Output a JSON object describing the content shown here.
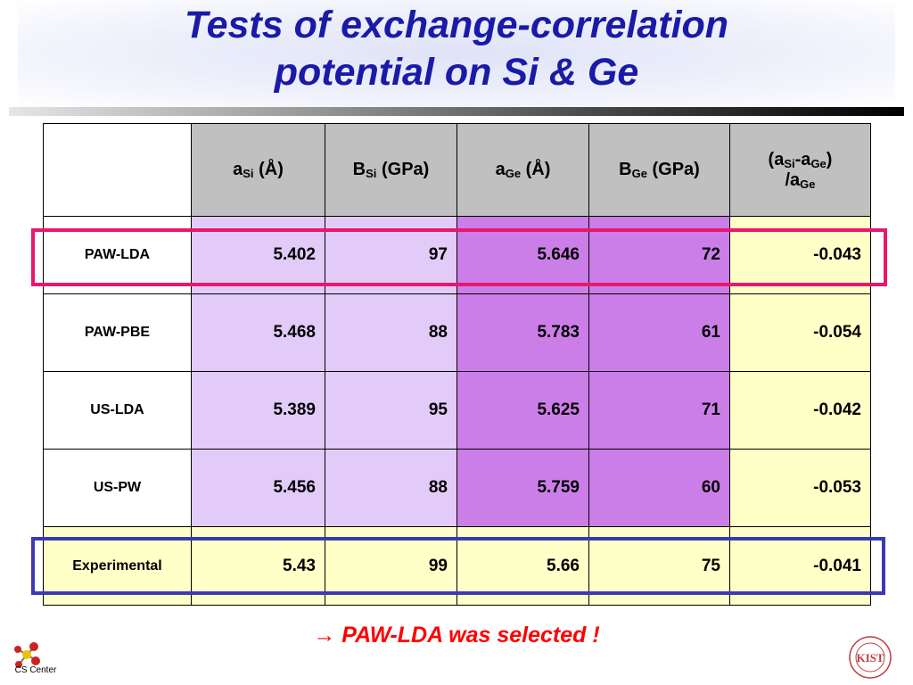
{
  "title": {
    "line1": "Tests of exchange-correlation",
    "line2": "potential on Si & Ge"
  },
  "table": {
    "headers": [
      {
        "main": "a",
        "sub": "Si",
        "rest": " (Å)"
      },
      {
        "main": "B",
        "sub": "Si",
        "rest": " (GPa)"
      },
      {
        "main": "a",
        "sub": "Ge",
        "rest": " (Å)"
      },
      {
        "main": "B",
        "sub": "Ge",
        "rest": " (GPa)"
      }
    ],
    "last_header": {
      "p1": "(a",
      "s1": "Si",
      "p2": "-a",
      "s2": "Ge",
      "p3": ")",
      "p4": "/a",
      "s3": "Ge"
    },
    "rows": [
      {
        "label": "PAW-LDA",
        "values": [
          "5.402",
          "97",
          "5.646",
          "72",
          "-0.043"
        ]
      },
      {
        "label": "PAW-PBE",
        "values": [
          "5.468",
          "88",
          "5.783",
          "61",
          "-0.054"
        ]
      },
      {
        "label": "US-LDA",
        "values": [
          "5.389",
          "95",
          "5.625",
          "71",
          "-0.042"
        ]
      },
      {
        "label": "US-PW",
        "values": [
          "5.456",
          "88",
          "5.759",
          "60",
          "-0.053"
        ]
      },
      {
        "label": "Experimental",
        "values": [
          "5.43",
          "99",
          "5.66",
          "75",
          "-0.041"
        ]
      }
    ]
  },
  "conclusion": "PAW-LDA was selected !",
  "conclusion_arrow": "→",
  "logos": {
    "left_caption": "CS Center",
    "right_mark": "KIST"
  },
  "colors": {
    "title": "#1a1aa8",
    "header_bg": "#c0c0c0",
    "si_col_bg": "#e2cbf8",
    "ge_col_bg": "#cc7ee8",
    "ratio_col_bg": "#ffffc8",
    "highlight_paw_lda": "#e8186e",
    "highlight_experimental": "#3a3ab5",
    "conclusion": "#ff0000"
  }
}
